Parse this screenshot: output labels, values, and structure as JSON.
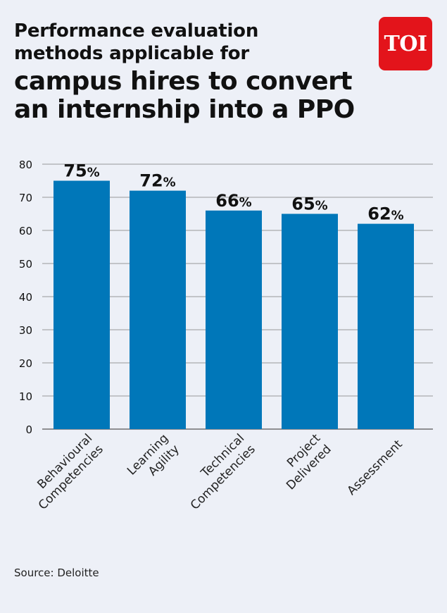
{
  "title_light": "Performance evaluation\nmethods applicable for",
  "title_bold": "campus hires to convert\nan internship into a PPO",
  "logo_text": "TOI",
  "source": "Source:  Deloitte",
  "chart_data": {
    "type": "bar",
    "categories": [
      [
        "Behavioural",
        "Competencies"
      ],
      [
        "Learning",
        "Agility"
      ],
      [
        "Technical",
        "Competencies"
      ],
      [
        "Project",
        "Delivered"
      ],
      [
        "Assessment"
      ]
    ],
    "values": [
      75,
      72,
      66,
      65,
      62
    ],
    "data_labels": [
      "75%",
      "72%",
      "66%",
      "65%",
      "62%"
    ],
    "ylim": [
      0,
      80
    ],
    "yticks": [
      0,
      10,
      20,
      30,
      40,
      50,
      60,
      70,
      80
    ],
    "grid": true,
    "bar_color": "#0077b9"
  }
}
